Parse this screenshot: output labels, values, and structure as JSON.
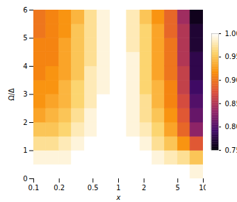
{
  "chart_data": {
    "type": "heatmap",
    "x_label": "x",
    "y_label": "Ω/Δ",
    "log": "x",
    "xlim": [
      0.1,
      10
    ],
    "xticks": [
      0.1,
      0.2,
      0.5,
      1,
      2,
      5,
      10
    ],
    "ylim": [
      0,
      6
    ],
    "yticks": [
      0,
      1,
      2,
      3,
      4,
      5,
      6
    ],
    "x_edges": [
      0.1,
      0.14,
      0.2,
      0.28,
      0.4,
      0.56,
      0.8,
      1.25,
      1.8,
      2.5,
      3.5,
      5,
      7,
      10
    ],
    "y_edges": [
      0,
      0.5,
      1,
      1.5,
      2,
      2.5,
      3,
      3.5,
      4,
      4.5,
      5,
      5.5,
      6
    ],
    "values": [
      [
        1.0,
        1.0,
        1.0,
        1.0,
        1.0,
        1.0,
        1.0,
        1.0,
        1.0,
        1.0,
        1.0,
        1.0,
        0.99
      ],
      [
        0.99,
        0.99,
        0.99,
        1.0,
        1.0,
        1.0,
        1.0,
        1.0,
        1.0,
        0.99,
        0.98,
        0.97,
        0.95
      ],
      [
        0.97,
        0.97,
        0.98,
        0.99,
        1.0,
        1.0,
        1.0,
        1.0,
        0.99,
        0.97,
        0.95,
        0.92,
        0.88
      ],
      [
        0.95,
        0.95,
        0.96,
        0.98,
        0.99,
        1.0,
        1.0,
        0.99,
        0.98,
        0.96,
        0.93,
        0.89,
        0.83
      ],
      [
        0.93,
        0.94,
        0.95,
        0.97,
        0.99,
        1.0,
        1.0,
        0.99,
        0.97,
        0.95,
        0.92,
        0.88,
        0.81
      ],
      [
        0.92,
        0.93,
        0.94,
        0.96,
        0.98,
        1.0,
        1.0,
        0.99,
        0.97,
        0.94,
        0.91,
        0.87,
        0.8
      ],
      [
        0.92,
        0.92,
        0.94,
        0.96,
        0.98,
        0.99,
        1.0,
        0.99,
        0.96,
        0.94,
        0.91,
        0.86,
        0.79
      ],
      [
        0.91,
        0.92,
        0.93,
        0.95,
        0.98,
        0.99,
        1.0,
        0.99,
        0.96,
        0.93,
        0.9,
        0.86,
        0.78
      ],
      [
        0.91,
        0.91,
        0.93,
        0.95,
        0.97,
        0.99,
        1.0,
        0.99,
        0.96,
        0.93,
        0.9,
        0.85,
        0.78
      ],
      [
        0.91,
        0.91,
        0.93,
        0.95,
        0.97,
        0.99,
        1.0,
        0.98,
        0.96,
        0.93,
        0.9,
        0.85,
        0.77
      ],
      [
        0.9,
        0.91,
        0.92,
        0.95,
        0.97,
        0.99,
        1.0,
        0.98,
        0.96,
        0.93,
        0.89,
        0.85,
        0.77
      ],
      [
        0.9,
        0.91,
        0.92,
        0.94,
        0.97,
        0.99,
        1.0,
        0.98,
        0.95,
        0.92,
        0.89,
        0.84,
        0.76
      ]
    ],
    "colorbar": {
      "range": [
        0.75,
        1.0
      ],
      "ticks": [
        0.75,
        {
          "value": 0.8,
          "label": "0.80"
        },
        0.85,
        {
          "value": 0.9,
          "label": "0.90"
        },
        0.95,
        {
          "value": 1.0,
          "label": "1.00"
        }
      ]
    }
  }
}
